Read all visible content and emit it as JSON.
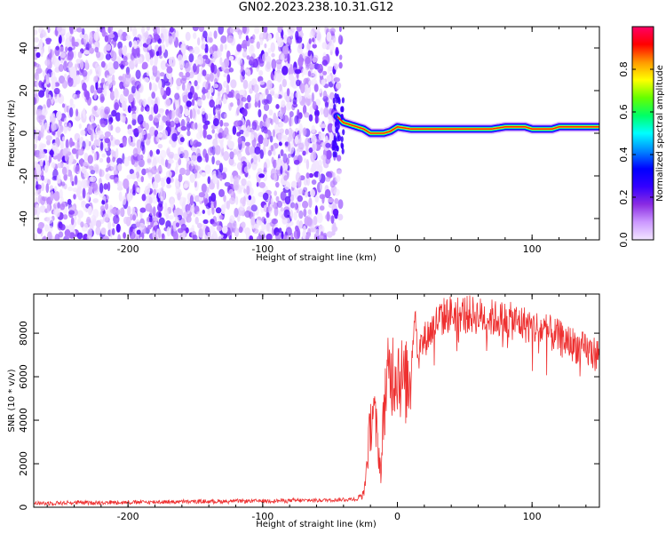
{
  "title": "GN02.2023.238.10.31.G12",
  "colors": {
    "snr_line": "#ee3030",
    "frame": "#000000",
    "colorbar_stops": [
      "#f2e6ff",
      "#cc99ff",
      "#8a2be2",
      "#3300ff",
      "#0000ff",
      "#0088ff",
      "#00ffff",
      "#00ff66",
      "#66ff00",
      "#ffff00",
      "#ff9900",
      "#ff0000",
      "#ff0066"
    ]
  },
  "chart_data": [
    {
      "type": "heatmap",
      "title": "",
      "xlabel": "Height of straight line (km)",
      "ylabel": "Frequency (Hz)",
      "xlim": [
        -270,
        150
      ],
      "ylim": [
        -50,
        50
      ],
      "xticks": [
        -200,
        -100,
        0,
        100
      ],
      "yticks": [
        -40,
        -20,
        0,
        20,
        40
      ],
      "colorbar": {
        "label": "Normalized spectral amplitude",
        "range": [
          0,
          1
        ],
        "ticks": [
          "0.0",
          "0.2",
          "0.4",
          "0.6",
          "0.8"
        ]
      },
      "noise_region_x": [
        -270,
        -42
      ],
      "ridge": {
        "x": [
          -45,
          -40,
          -35,
          -30,
          -25,
          -20,
          -15,
          -10,
          -5,
          0,
          10,
          20,
          30,
          40,
          50,
          60,
          70,
          80,
          90,
          95,
          100,
          105,
          110,
          115,
          120,
          130,
          140,
          150
        ],
        "freq": [
          8,
          5,
          4,
          3,
          2,
          0,
          0,
          0,
          1,
          3,
          2,
          2,
          2,
          2,
          2,
          2,
          2,
          3,
          3,
          3,
          2,
          2,
          2,
          2,
          3,
          3,
          3,
          3
        ]
      }
    },
    {
      "type": "line",
      "title": "",
      "xlabel": "Height of straight line (km)",
      "ylabel": "SNR (10 * v/v)",
      "xlim": [
        -270,
        150
      ],
      "ylim": [
        0,
        9800
      ],
      "xticks": [
        -200,
        -100,
        0,
        100
      ],
      "yticks": [
        0,
        2000,
        4000,
        6000,
        8000
      ],
      "series": [
        {
          "x": [
            -270,
            -250,
            -200,
            -150,
            -100,
            -60,
            -40,
            -30,
            -25,
            -23,
            -20,
            -18,
            -15,
            -12,
            -10,
            -8,
            -5,
            0,
            5,
            10,
            13,
            15,
            20,
            25,
            30,
            35,
            40,
            50,
            60,
            70,
            80,
            90,
            100,
            110,
            120,
            130,
            140,
            150
          ],
          "y": [
            180,
            200,
            230,
            260,
            290,
            320,
            350,
            380,
            600,
            1800,
            3800,
            4600,
            3200,
            1500,
            4800,
            5600,
            6200,
            6500,
            5600,
            6000,
            9400,
            7000,
            7700,
            8100,
            8600,
            8800,
            8900,
            8900,
            8800,
            8700,
            8600,
            8500,
            8300,
            8100,
            7800,
            7500,
            7200,
            7000
          ]
        }
      ]
    }
  ]
}
